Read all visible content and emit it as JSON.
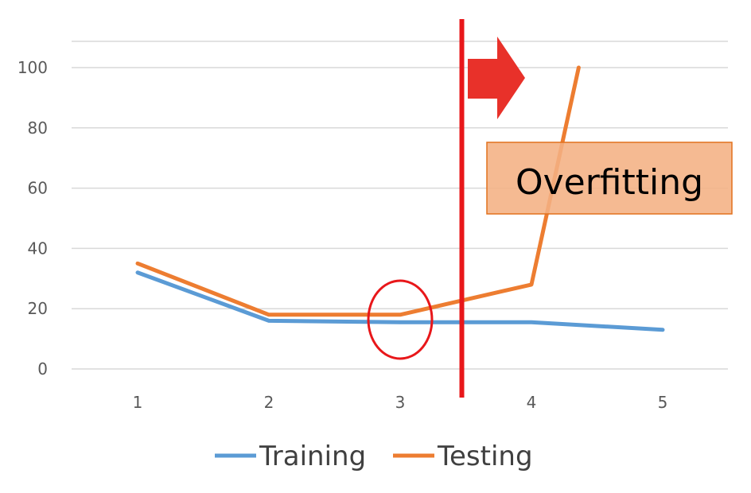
{
  "chart_data": {
    "type": "line",
    "categories": [
      "1",
      "2",
      "3",
      "4",
      "5"
    ],
    "ylim": [
      0,
      100
    ],
    "yticks": [
      "0",
      "20",
      "40",
      "60",
      "80",
      "100"
    ],
    "grid": true,
    "legend_position": "bottom",
    "series": [
      {
        "name": "Training",
        "color": "#5B9BD5",
        "values": [
          32,
          16,
          15.5,
          15.5,
          13
        ]
      },
      {
        "name": "Testing",
        "color": "#ED7D31",
        "values": [
          35,
          18,
          18,
          28,
          100
        ]
      }
    ],
    "testing_peak_x": 4.36,
    "annotations": {
      "label": "Overfitting",
      "box_color": "#F4B183",
      "box_border": "#E2711D",
      "divider_color": "#E8171A",
      "divider_x": 3.5,
      "arrow_color": "#E8312A",
      "highlight_circle_x": 3
    }
  }
}
